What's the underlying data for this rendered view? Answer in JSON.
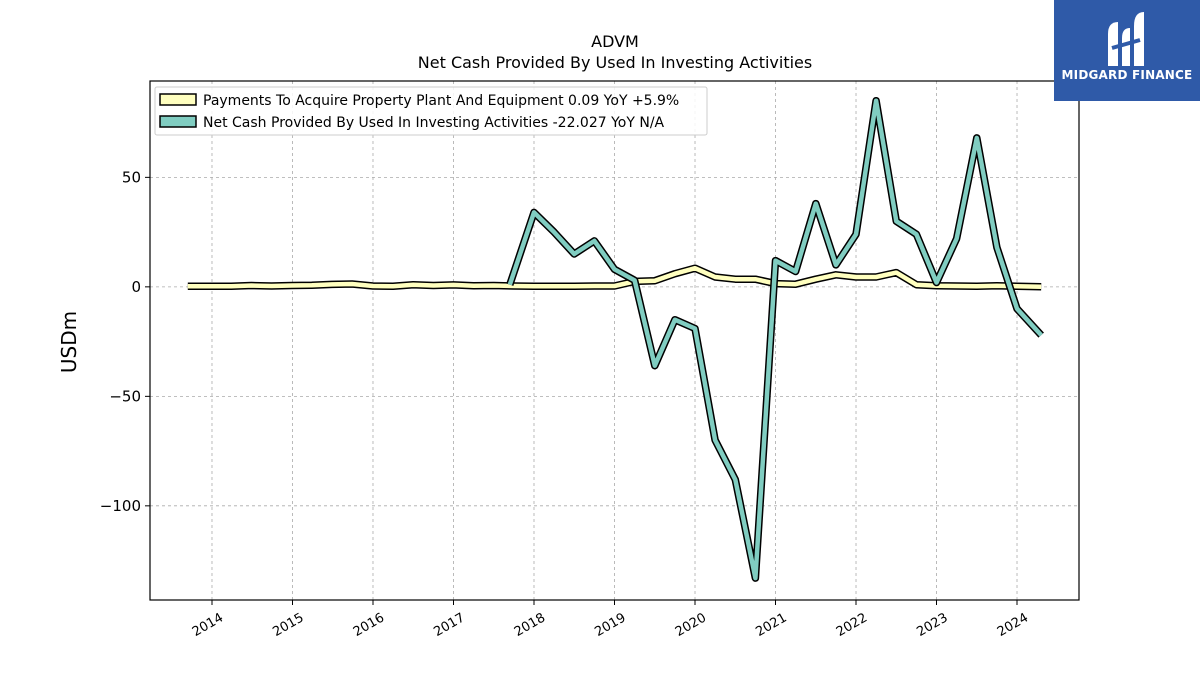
{
  "chart_data": {
    "type": "line",
    "title": "ADVM",
    "subtitle": "Net Cash Provided By Used In Investing Activities",
    "ylabel": "USDm",
    "xlabel": "",
    "ylim": [
      -143,
      94
    ],
    "xlim": [
      2013.23,
      2024.77
    ],
    "yticks": [
      50,
      0,
      -50,
      -100
    ],
    "ytick_labels": [
      "50",
      "0",
      "−50",
      "−100"
    ],
    "xticks": [
      2014,
      2015,
      2016,
      2017,
      2018,
      2019,
      2020,
      2021,
      2022,
      2023,
      2024
    ],
    "xtick_labels": [
      "2014",
      "2015",
      "2016",
      "2017",
      "2018",
      "2019",
      "2020",
      "2021",
      "2022",
      "2023",
      "2024"
    ],
    "grid": true,
    "legend_position": "top-left",
    "series": [
      {
        "name": "Payments To Acquire Property Plant And Equipment  0.09 YoY +5.9%",
        "color": "#ffffbf",
        "x": [
          2013.7,
          2013.96,
          2014.24,
          2014.49,
          2014.74,
          2014.99,
          2015.24,
          2015.49,
          2015.74,
          2016.0,
          2016.25,
          2016.5,
          2016.75,
          2017.0,
          2017.25,
          2017.5,
          2017.75,
          2018.0,
          2018.25,
          2018.5,
          2018.75,
          2019.0,
          2019.25,
          2019.5,
          2019.75,
          2020.0,
          2020.25,
          2020.5,
          2020.75,
          2021.0,
          2021.25,
          2021.5,
          2021.75,
          2022.0,
          2022.25,
          2022.5,
          2022.75,
          2023.0,
          2023.25,
          2023.5,
          2023.75,
          2024.0,
          2024.3
        ],
        "values": [
          0.3,
          0.3,
          0.3,
          0.6,
          0.4,
          0.6,
          0.7,
          1.1,
          1.3,
          0.4,
          0.3,
          1.0,
          0.6,
          0.9,
          0.5,
          0.6,
          0.4,
          0.3,
          0.3,
          0.3,
          0.4,
          0.4,
          2.5,
          2.8,
          6.0,
          8.5,
          4.5,
          3.5,
          3.5,
          1.5,
          1.2,
          3.5,
          5.5,
          4.5,
          4.5,
          6.5,
          1.0,
          0.5,
          0.4,
          0.3,
          0.5,
          0.3,
          0.09
        ]
      },
      {
        "name": "Net Cash Provided By Used In Investing Activities  -22.027 YoY N/A",
        "color": "#80cdc1",
        "x": [
          2017.7,
          2018.0,
          2018.25,
          2018.5,
          2018.75,
          2019.0,
          2019.25,
          2019.5,
          2019.75,
          2020.0,
          2020.25,
          2020.5,
          2020.75,
          2021.0,
          2021.25,
          2021.5,
          2021.75,
          2022.0,
          2022.25,
          2022.5,
          2022.75,
          2023.0,
          2023.25,
          2023.5,
          2023.75,
          2024.0,
          2024.3
        ],
        "values": [
          1.0,
          34.0,
          25.0,
          15.0,
          21.0,
          8.0,
          3.0,
          -36.0,
          -15.0,
          -19.0,
          -70.0,
          -88.0,
          -133.0,
          12.0,
          7.0,
          38.0,
          10.0,
          24.0,
          85.0,
          30.0,
          24.0,
          2.0,
          22.0,
          68.0,
          18.0,
          -10.0,
          -22.027
        ]
      }
    ]
  },
  "logo": {
    "text": "MIDGARD FINANCE"
  }
}
